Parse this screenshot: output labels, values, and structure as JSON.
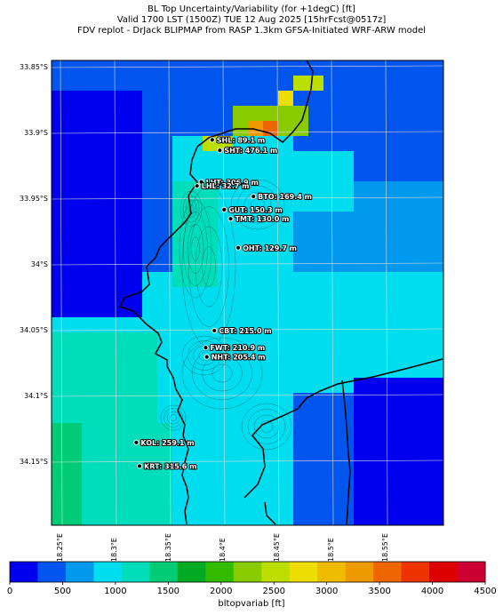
{
  "header": {
    "line1": "BL Top Uncertainty/Variability (for +1degC) [ft]",
    "line2": "Valid 1700 LST (1500Z) TUE 12 Aug 2025 [15hrFcst@0517z]",
    "line3": "FDV replot - DrJack BLIPMAP from RASP 1.3km GFSA-Initiated WRF-ARW model"
  },
  "axes": {
    "y_ticks": [
      "33.85°S",
      "33.9°S",
      "33.95°S",
      "34°S",
      "34.05°S",
      "34.1°S",
      "34.15°S"
    ],
    "x_ticks": [
      "18.25°E",
      "18.3°E",
      "18.35°E",
      "18.4°E",
      "18.45°E",
      "18.5°E",
      "18.55°E"
    ]
  },
  "colorbar": {
    "label": "bltopvariab [ft]",
    "ticks": [
      "0",
      "500",
      "1000",
      "1500",
      "2000",
      "2500",
      "3000",
      "3500",
      "4000",
      "4500"
    ],
    "colors": [
      "#0000ee",
      "#0055ee",
      "#0099ee",
      "#00ddee",
      "#00ddbb",
      "#00cc77",
      "#00aa22",
      "#33bb00",
      "#88cc00",
      "#bbdd00",
      "#eedd00",
      "#eebb00",
      "#ee9900",
      "#ee6600",
      "#ee3300",
      "#dd0000",
      "#cc0033"
    ]
  },
  "stations": [
    {
      "name": "SHL",
      "label": "SHL: 89.1 m",
      "lon": 18.39,
      "lat": 33.905
    },
    {
      "name": "SHT",
      "label": "SHT: 476.1 m",
      "lon": 18.397,
      "lat": 33.913
    },
    {
      "name": "LHT",
      "label": "LHT: 306.9 m",
      "lon": 18.38,
      "lat": 33.937
    },
    {
      "name": "LHL",
      "label": "LHL: 32.7 m",
      "lon": 18.376,
      "lat": 33.94
    },
    {
      "name": "BTO",
      "label": "BTO: 169.4 m",
      "lon": 18.428,
      "lat": 33.948
    },
    {
      "name": "GUT",
      "label": "GUT: 150.3 m",
      "lon": 18.401,
      "lat": 33.958
    },
    {
      "name": "TMT",
      "label": "TMT: 130.0 m",
      "lon": 18.407,
      "lat": 33.965
    },
    {
      "name": "OHT",
      "label": "OHT: 129.7 m",
      "lon": 18.414,
      "lat": 33.987
    },
    {
      "name": "CBT",
      "label": "CBT: 215.0 m",
      "lon": 18.392,
      "lat": 34.05
    },
    {
      "name": "FWT",
      "label": "FWT: 210.9 m",
      "lon": 18.384,
      "lat": 34.063
    },
    {
      "name": "NHT",
      "label": "NHT: 205.4 m",
      "lon": 18.385,
      "lat": 34.07
    },
    {
      "name": "KOL",
      "label": "KOL: 259.1 m",
      "lon": 18.32,
      "lat": 34.135
    },
    {
      "name": "KRT",
      "label": "KRT: 315.6 m",
      "lon": 18.323,
      "lat": 34.153
    }
  ]
}
